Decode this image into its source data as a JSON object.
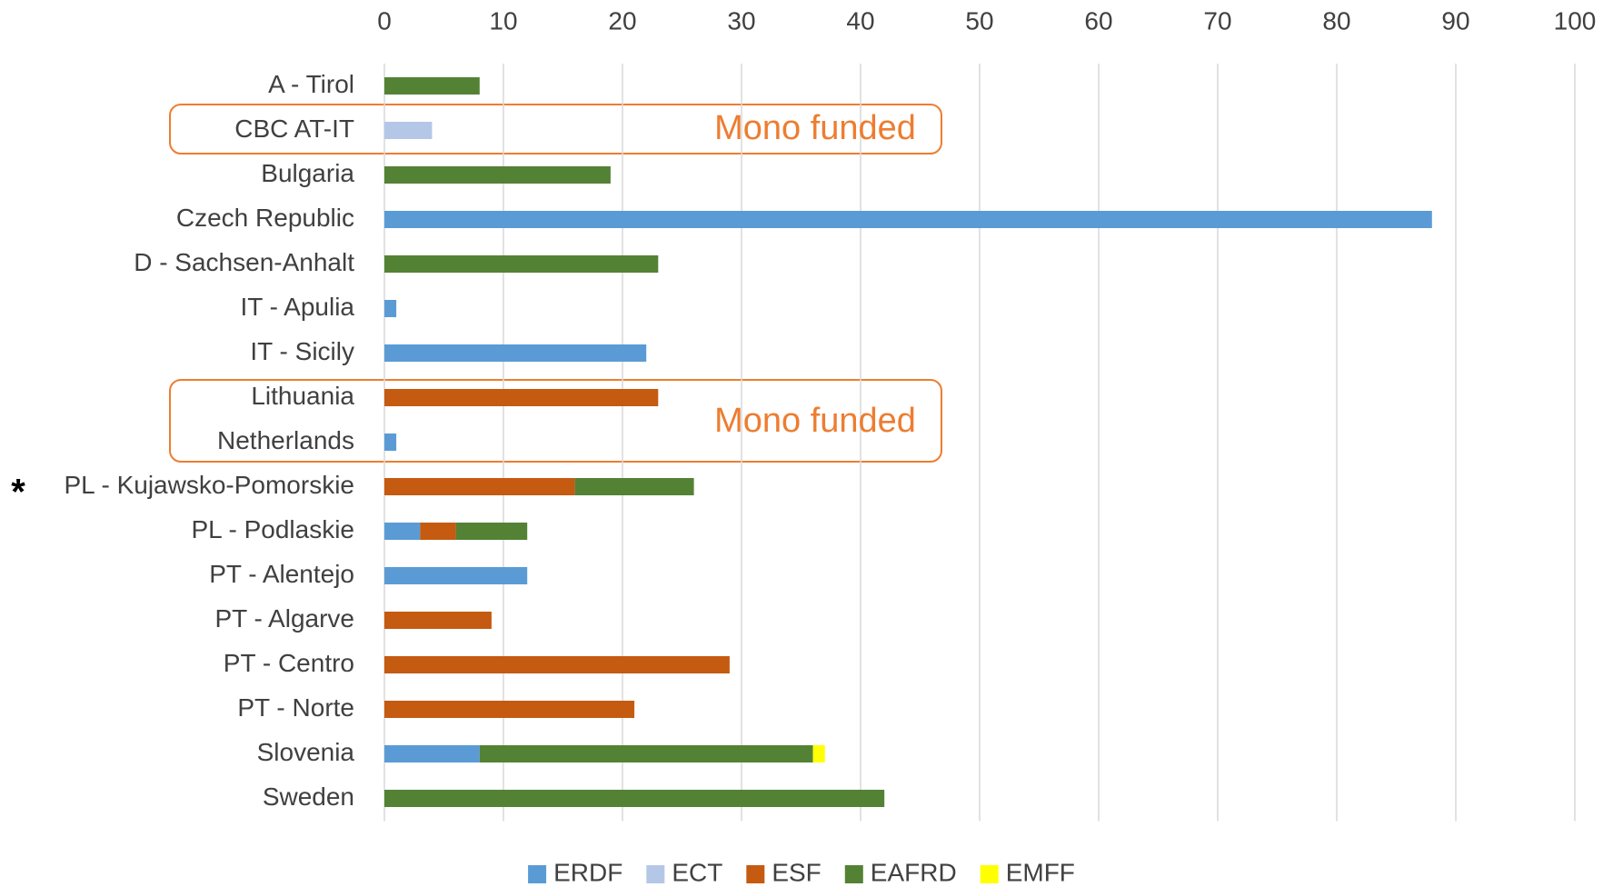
{
  "chart_data": {
    "type": "stacked_barh",
    "categories": [
      "A - Tirol",
      "CBC AT-IT",
      "Bulgaria",
      "Czech Republic",
      "D - Sachsen-Anhalt",
      "IT - Apulia",
      "IT - Sicily",
      "Lithuania",
      "Netherlands",
      "PL - Kujawsko-Pomorskie",
      "PL - Podlaskie",
      "PT - Alentejo",
      "PT - Algarve",
      "PT - Centro",
      "PT - Norte",
      "Slovenia",
      "Sweden"
    ],
    "series": [
      {
        "name": "ERDF",
        "color": "#5b9bd5",
        "values": [
          null,
          null,
          null,
          88,
          null,
          1,
          22,
          null,
          1,
          null,
          3,
          12,
          null,
          null,
          null,
          8,
          null
        ]
      },
      {
        "name": "ECT",
        "color": "#b4c7e7",
        "values": [
          null,
          4,
          null,
          null,
          null,
          null,
          null,
          null,
          null,
          null,
          null,
          null,
          null,
          null,
          null,
          null,
          null
        ]
      },
      {
        "name": "ESF",
        "color": "#c55a11",
        "values": [
          null,
          null,
          null,
          null,
          null,
          null,
          null,
          23,
          null,
          16,
          3,
          null,
          9,
          29,
          21,
          null,
          null
        ]
      },
      {
        "name": "EAFRD",
        "color": "#548235",
        "values": [
          8,
          null,
          19,
          null,
          23,
          null,
          null,
          null,
          null,
          10,
          6,
          null,
          null,
          null,
          null,
          28,
          42
        ]
      },
      {
        "name": "EMFF",
        "color": "#ffff00",
        "values": [
          null,
          null,
          null,
          null,
          null,
          null,
          null,
          null,
          null,
          null,
          null,
          null,
          null,
          null,
          null,
          1,
          null
        ]
      }
    ],
    "xlim": [
      0,
      100
    ],
    "xticks": [
      0,
      10,
      20,
      30,
      40,
      50,
      60,
      70,
      80,
      90,
      100
    ],
    "grid": true,
    "legend": "bottom",
    "annotations": [
      "Mono funded",
      "Mono funded",
      "*"
    ]
  }
}
